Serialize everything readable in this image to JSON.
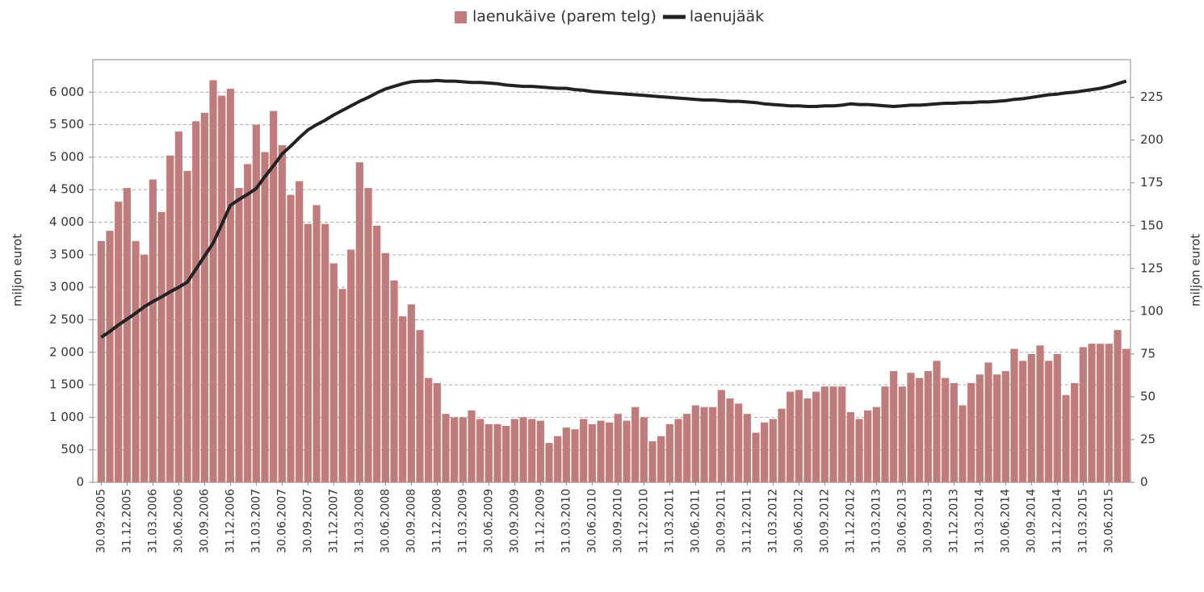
{
  "chart_data": {
    "type": "bar_line",
    "series": [
      {
        "name": "laenukäive (parem telg)",
        "type": "bar",
        "axis": "y2",
        "color": "#c07b7b",
        "values": [
          141,
          147,
          164,
          172,
          141,
          133,
          177,
          158,
          191,
          205,
          182,
          211,
          216,
          235,
          226,
          230,
          172,
          186,
          209,
          193,
          217,
          197,
          168,
          176,
          151,
          162,
          151,
          128,
          113,
          136,
          187,
          172,
          150,
          134,
          118,
          97,
          104,
          89,
          61,
          58,
          40,
          38,
          38,
          42,
          37,
          34,
          34,
          33,
          37,
          38,
          37,
          36,
          23,
          27,
          32,
          31,
          37,
          34,
          36,
          35,
          40,
          36,
          44,
          38,
          24,
          27,
          34,
          37,
          40,
          45,
          44,
          44,
          54,
          49,
          46,
          40,
          29,
          35,
          37,
          43,
          53,
          54,
          49,
          53,
          56,
          56,
          56,
          41,
          37,
          42,
          44,
          56,
          65,
          56,
          64,
          61,
          65,
          71,
          61,
          58,
          45,
          58,
          63,
          70,
          63,
          65,
          78,
          71,
          75,
          80,
          71,
          75,
          51,
          58,
          79,
          81,
          81,
          81,
          89,
          78
        ]
      },
      {
        "name": "laenujääk",
        "type": "line",
        "axis": "y",
        "color": "#222222",
        "values": [
          2230,
          2320,
          2420,
          2510,
          2600,
          2700,
          2780,
          2850,
          2930,
          3000,
          3080,
          3280,
          3480,
          3680,
          3970,
          4260,
          4350,
          4430,
          4520,
          4700,
          4870,
          5050,
          5170,
          5300,
          5420,
          5500,
          5570,
          5650,
          5720,
          5790,
          5860,
          5920,
          5990,
          6050,
          6090,
          6130,
          6160,
          6170,
          6170,
          6180,
          6170,
          6170,
          6160,
          6150,
          6150,
          6140,
          6130,
          6110,
          6100,
          6090,
          6090,
          6080,
          6070,
          6060,
          6060,
          6040,
          6030,
          6010,
          6000,
          5990,
          5980,
          5970,
          5960,
          5950,
          5940,
          5930,
          5920,
          5910,
          5900,
          5890,
          5880,
          5880,
          5870,
          5860,
          5860,
          5850,
          5840,
          5820,
          5810,
          5800,
          5790,
          5790,
          5780,
          5780,
          5790,
          5790,
          5800,
          5820,
          5810,
          5810,
          5800,
          5790,
          5780,
          5790,
          5800,
          5800,
          5810,
          5820,
          5830,
          5830,
          5840,
          5840,
          5850,
          5850,
          5860,
          5870,
          5890,
          5900,
          5920,
          5940,
          5960,
          5970,
          5990,
          6000,
          6020,
          6040,
          6060,
          6090,
          6130,
          6170
        ]
      }
    ],
    "categories": [
      "30.09.2005",
      null,
      null,
      "31.12.2005",
      null,
      null,
      "31.03.2006",
      null,
      null,
      "30.06.2006",
      null,
      null,
      "30.09.2006",
      null,
      null,
      "31.12.2006",
      null,
      null,
      "31.03.2007",
      null,
      null,
      "30.06.2007",
      null,
      null,
      "30.09.2007",
      null,
      null,
      "31.12.2007",
      null,
      null,
      "31.03.2008",
      null,
      null,
      "30.06.2008",
      null,
      null,
      "30.09.2008",
      null,
      null,
      "31.12.2008",
      null,
      null,
      "31.03.2009",
      null,
      null,
      "30.06.2009",
      null,
      null,
      "30.09.2009",
      null,
      null,
      "31.12.2009",
      null,
      null,
      "31.03.2010",
      null,
      null,
      "30.06.2010",
      null,
      null,
      "30.09.2010",
      null,
      null,
      "31.12.2010",
      null,
      null,
      "31.03.2011",
      null,
      null,
      "30.06.2011",
      null,
      null,
      "30.09.2011",
      null,
      null,
      "31.12.2011",
      null,
      null,
      "31.03.2012",
      null,
      null,
      "30.06.2012",
      null,
      null,
      "30.09.2012",
      null,
      null,
      "31.12.2012",
      null,
      null,
      "31.03.2013",
      null,
      null,
      "30.06.2013",
      null,
      null,
      "30.09.2013",
      null,
      null,
      "31.12.2013",
      null,
      null,
      "31.03.2014",
      null,
      null,
      "30.06.2014",
      null,
      null,
      "30.09.2014",
      null,
      null,
      "31.12.2014",
      null,
      null,
      "31.03.2015",
      null,
      null,
      "30.06.2015",
      null,
      null
    ],
    "ylabel": "miljon eurot",
    "y2label": "miljon eurot",
    "ylim": [
      0,
      6500
    ],
    "yticks": [
      0,
      500,
      {
        "value": 1000,
        "label": "1 000"
      },
      {
        "value": 1500,
        "label": "1 500"
      },
      {
        "value": 2000,
        "label": "2 000"
      },
      {
        "value": 2500,
        "label": "2 500"
      },
      {
        "value": 3000,
        "label": "3 000"
      },
      {
        "value": 3500,
        "label": "3 500"
      },
      {
        "value": 4000,
        "label": "4 000"
      },
      {
        "value": 4500,
        "label": "4 500"
      },
      {
        "value": 5000,
        "label": "5 000"
      },
      {
        "value": 5500,
        "label": "5 500"
      },
      {
        "value": 6000,
        "label": "6 000"
      }
    ],
    "y2lim": [
      0,
      247
    ],
    "y2ticks": [
      0,
      25,
      50,
      75,
      100,
      125,
      150,
      175,
      200,
      225
    ],
    "grid": true,
    "legend": "top"
  }
}
